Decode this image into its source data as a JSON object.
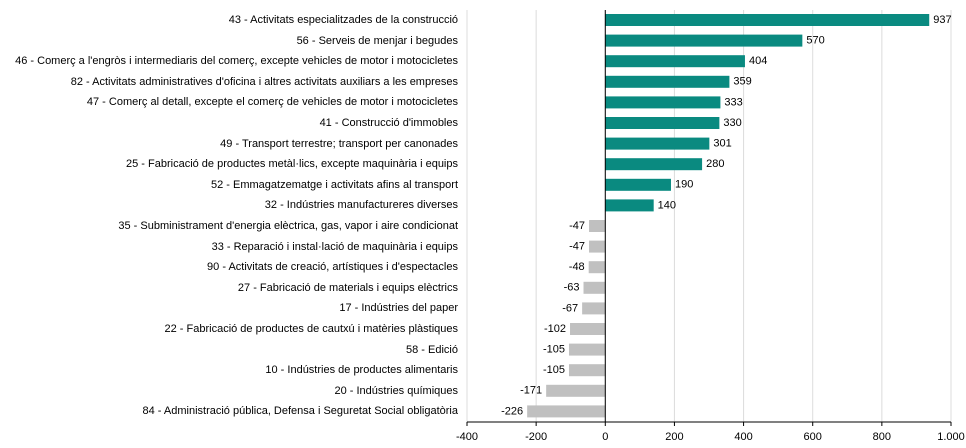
{
  "chart_data": {
    "type": "bar",
    "orientation": "horizontal",
    "categories": [
      "43 - Activitats especialitzades de la construcció",
      "56 - Serveis de menjar i begudes",
      "46 - Comerç a l'engròs i intermediaris del comerç, excepte vehicles de motor i motocicletes",
      "82 - Activitats administratives d'oficina i altres activitats auxiliars a les empreses",
      "47 - Comerç al detall, excepte el comerç de vehicles de motor i motocicletes",
      "41 - Construcció d'immobles",
      "49 - Transport terrestre; transport per canonades",
      "25 - Fabricació de productes metàl·lics, excepte maquinària i equips",
      "52 - Emmagatzematge i activitats afins al transport",
      "32 - Indústries manufactureres diverses",
      "35 - Subministrament d'energia elèctrica, gas, vapor i aire condicionat",
      "33 - Reparació i instal·lació de maquinària i equips",
      "90 - Activitats de creació, artístiques i d'espectacles",
      "27 - Fabricació de materials i equips elèctrics",
      "17 - Indústries del paper",
      "22 - Fabricació de productes de cautxú i matèries plàstiques",
      "58 - Edició",
      "10 - Indústries de productes alimentaris",
      "20 - Indústries químiques",
      "84 - Administració pública, Defensa i Seguretat Social obligatòria"
    ],
    "values": [
      937,
      570,
      404,
      359,
      333,
      330,
      301,
      280,
      190,
      140,
      -47,
      -47,
      -48,
      -63,
      -67,
      -102,
      -105,
      -105,
      -171,
      -226
    ],
    "positive_color": "#0a8a80",
    "negative_color": "#c0c0c0",
    "xlim": [
      -400,
      1000
    ],
    "xticks": [
      -400,
      -200,
      0,
      200,
      400,
      600,
      800,
      {
        "value": 1000,
        "label": "1.000"
      }
    ],
    "grid": true
  }
}
